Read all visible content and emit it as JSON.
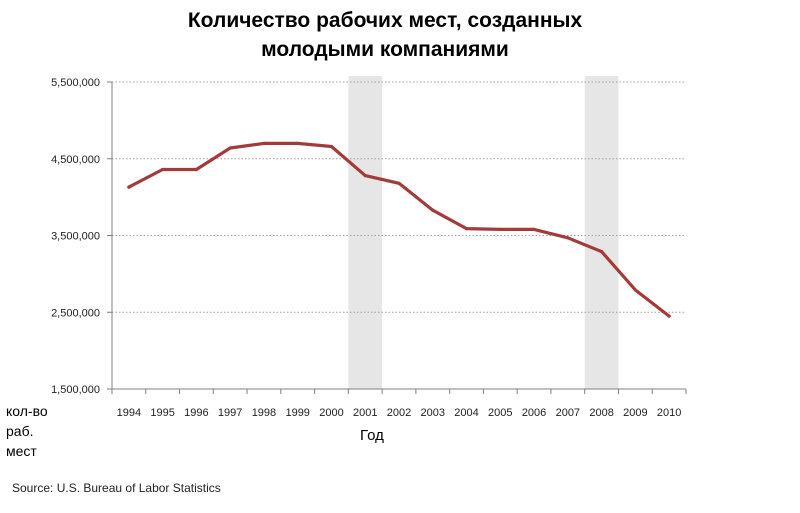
{
  "chart_data": {
    "type": "line",
    "title_lines": [
      "Количество рабочих мест, созданных",
      "молодыми компаниями"
    ],
    "xlabel": "Год",
    "ylabel_lines": [
      "кол-во",
      "раб.",
      "мест"
    ],
    "source": "Source: U.S. Bureau of Labor Statistics",
    "ylim": [
      1500000,
      5500000
    ],
    "yticks": [
      1500000,
      2500000,
      3500000,
      4500000,
      5500000
    ],
    "ytick_labels": [
      "1,500,000",
      "2,500,000",
      "3,500,000",
      "4,500,000",
      "5,500,000"
    ],
    "categories": [
      "1994",
      "1995",
      "1996",
      "1997",
      "1998",
      "1999",
      "2000",
      "2001",
      "2002",
      "2003",
      "2004",
      "2005",
      "2006",
      "2007",
      "2008",
      "2009",
      "2010"
    ],
    "series": [
      {
        "values": [
          4130000,
          4360000,
          4360000,
          4640000,
          4700000,
          4700000,
          4660000,
          4280000,
          4180000,
          3830000,
          3590000,
          3580000,
          3580000,
          3470000,
          3290000,
          2790000,
          2450000
        ]
      }
    ],
    "recessions": [
      [
        "2000",
        "2001"
      ],
      [
        "2007",
        "2008"
      ]
    ],
    "grid": true,
    "colors": {
      "line": "#a33b3b",
      "grid": "#a0a0a0",
      "recession": "#e6e6e6",
      "axis": "#808080"
    }
  }
}
